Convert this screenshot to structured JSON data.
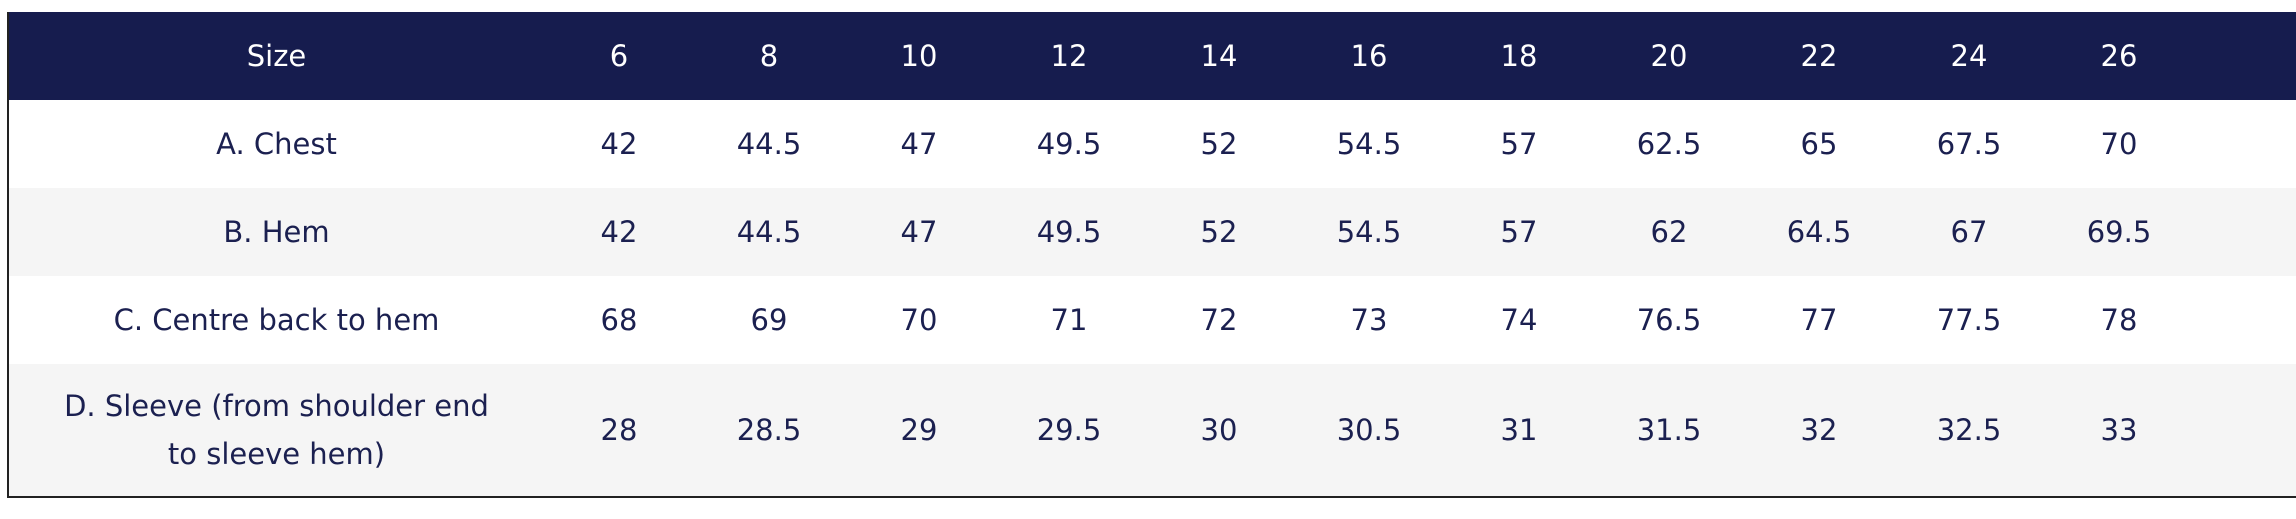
{
  "table": {
    "header": [
      "Size",
      "6",
      "8",
      "10",
      "12",
      "14",
      "16",
      "18",
      "20",
      "22",
      "24",
      "26"
    ],
    "rows": [
      [
        "A. Chest",
        "42",
        "44.5",
        "47",
        "49.5",
        "52",
        "54.5",
        "57",
        "62.5",
        "65",
        "67.5",
        "70"
      ],
      [
        "B. Hem",
        "42",
        "44.5",
        "47",
        "49.5",
        "52",
        "54.5",
        "57",
        "62",
        "64.5",
        "67",
        "69.5"
      ],
      [
        "C. Centre back to hem",
        "68",
        "69",
        "70",
        "71",
        "72",
        "73",
        "74",
        "76.5",
        "77",
        "77.5",
        "78"
      ],
      [
        "D. Sleeve (from shoulder end to sleeve hem)",
        "28",
        "28.5",
        "29",
        "29.5",
        "30",
        "30.5",
        "31",
        "31.5",
        "32",
        "32.5",
        "33"
      ]
    ]
  }
}
